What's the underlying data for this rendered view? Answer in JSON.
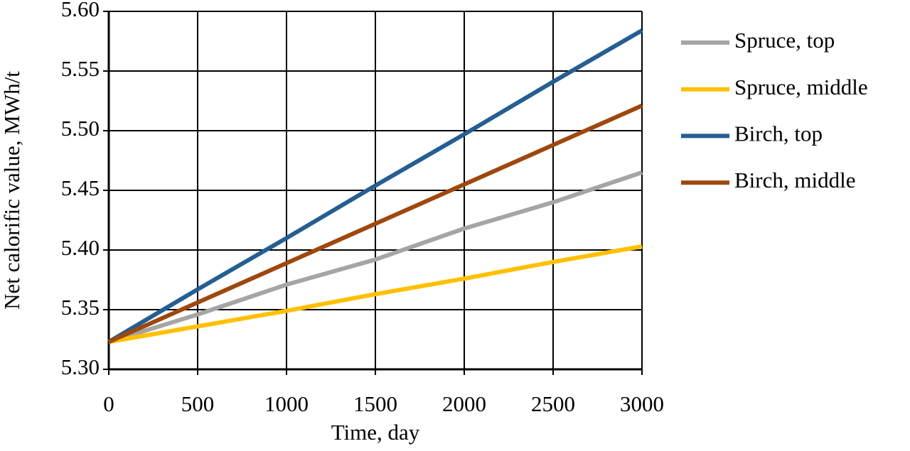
{
  "chart_data": {
    "type": "line",
    "x_label": "Time, day",
    "y_label": "Net calorific value, MWh/t",
    "x": [
      0,
      500,
      1000,
      1500,
      2000,
      2500,
      3000
    ],
    "series": [
      {
        "name": "Spruce, top",
        "color": "#a5a5a5",
        "values": [
          5.323,
          5.346,
          5.371,
          5.392,
          5.418,
          5.44,
          5.465
        ]
      },
      {
        "name": "Spruce, middle",
        "color": "#ffc000",
        "values": [
          5.323,
          5.336,
          5.349,
          5.363,
          5.376,
          5.39,
          5.403
        ]
      },
      {
        "name": "Birch, top",
        "color": "#255e91",
        "values": [
          5.323,
          5.367,
          5.41,
          5.454,
          5.497,
          5.541,
          5.584
        ]
      },
      {
        "name": "Birch, middle",
        "color": "#9e480e",
        "values": [
          5.323,
          5.356,
          5.389,
          5.422,
          5.455,
          5.488,
          5.521
        ]
      }
    ],
    "xlim": [
      0,
      3000
    ],
    "xticks": [
      0,
      500,
      1000,
      1500,
      2000,
      2500,
      3000
    ],
    "ylim": [
      5.3,
      5.6
    ],
    "yticks": [
      {
        "value": 5.3,
        "label": "5.30"
      },
      {
        "value": 5.35,
        "label": "5.35"
      },
      {
        "value": 5.4,
        "label": "5.40"
      },
      {
        "value": 5.45,
        "label": "5.45"
      },
      {
        "value": 5.5,
        "label": "5.50"
      },
      {
        "value": 5.55,
        "label": "5.55"
      },
      {
        "value": 5.6,
        "label": "5.60"
      }
    ],
    "grid": true,
    "legend": "right"
  }
}
